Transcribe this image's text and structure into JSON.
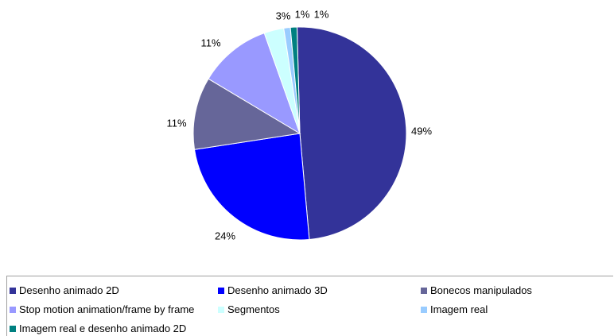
{
  "chart_data": {
    "type": "pie",
    "title": "",
    "slices": [
      {
        "label": "Desenho animado 2D",
        "value": 49,
        "display": "49%",
        "color": "#333399"
      },
      {
        "label": "Desenho animado 3D",
        "value": 24,
        "display": "24%",
        "color": "#0000ff"
      },
      {
        "label": "Bonecos manipulados",
        "value": 11,
        "display": "11%",
        "color": "#666699"
      },
      {
        "label": "Stop motion animation/frame by frame",
        "value": 11,
        "display": "11%",
        "color": "#9999ff"
      },
      {
        "label": "Segmentos",
        "value": 3,
        "display": "3%",
        "color": "#ccffff"
      },
      {
        "label": "Imagem real",
        "value": 1,
        "display": "1%",
        "color": "#99ccff"
      },
      {
        "label": "Imagem real e desenho animado 2D",
        "value": 1,
        "display": "1%",
        "color": "#008080"
      }
    ],
    "legend_position": "bottom"
  }
}
